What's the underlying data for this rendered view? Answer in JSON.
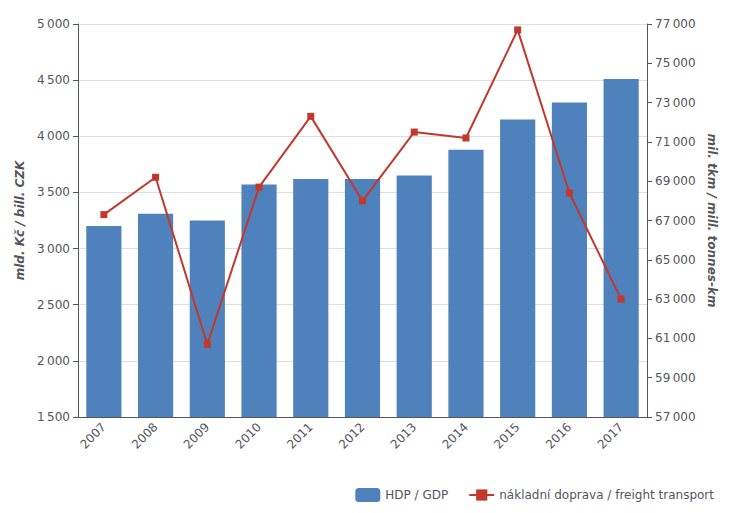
{
  "chart_data": {
    "type": "bar",
    "categories": [
      "2007",
      "2008",
      "2009",
      "2010",
      "2011",
      "2012",
      "2013",
      "2014",
      "2015",
      "2016",
      "2017"
    ],
    "series": [
      {
        "name": "HDP / GDP",
        "type": "bar",
        "color": "#4F81BD",
        "values": [
          3200,
          3310,
          3250,
          3570,
          3620,
          3620,
          3650,
          3880,
          4150,
          4300,
          4510
        ]
      },
      {
        "name": "nákladní doprava / freight transport",
        "type": "line",
        "color": "#C0392B",
        "marker": "square",
        "axis": "y2",
        "values": [
          67300,
          69200,
          60700,
          68700,
          72300,
          68000,
          71500,
          71200,
          76700,
          68400,
          63000
        ]
      }
    ],
    "ylabel": "mld. Kč / bill. CZK",
    "y2label": "mil. tkm / mill. tonnes-km",
    "ylim": [
      1500,
      5000
    ],
    "yticks": [
      {
        "value": 1500,
        "label": "1 500"
      },
      {
        "value": 2000,
        "label": "2 000"
      },
      {
        "value": 2500,
        "label": "2 500"
      },
      {
        "value": 3000,
        "label": "3 000"
      },
      {
        "value": 3500,
        "label": "3 500"
      },
      {
        "value": 4000,
        "label": "4 000"
      },
      {
        "value": 4500,
        "label": "4 500"
      },
      {
        "value": 5000,
        "label": "5 000"
      }
    ],
    "y2lim": [
      57000,
      77000
    ],
    "y2ticks": [
      {
        "value": 57000,
        "label": "57 000"
      },
      {
        "value": 59000,
        "label": "59 000"
      },
      {
        "value": 61000,
        "label": "61 000"
      },
      {
        "value": 63000,
        "label": "63 000"
      },
      {
        "value": 65000,
        "label": "65 000"
      },
      {
        "value": 67000,
        "label": "67 000"
      },
      {
        "value": 69000,
        "label": "69 000"
      },
      {
        "value": 71000,
        "label": "71 000"
      },
      {
        "value": 73000,
        "label": "73 000"
      },
      {
        "value": 75000,
        "label": "75 000"
      },
      {
        "value": 77000,
        "label": "77 000"
      }
    ],
    "grid": true,
    "legend": "lower right"
  }
}
